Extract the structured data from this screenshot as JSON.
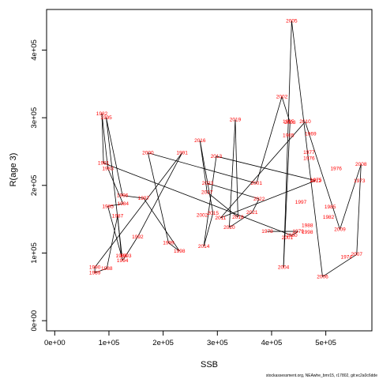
{
  "chart_data": {
    "type": "scatter",
    "connected": true,
    "xlabel": "SSB",
    "ylabel": "R(age 3)",
    "xlim": [
      -15000,
      585000
    ],
    "ylim": [
      -15000,
      460000
    ],
    "x_ticks": [
      0,
      100000,
      200000,
      300000,
      400000,
      500000
    ],
    "x_tick_labels": [
      "0e+00",
      "1e+05",
      "2e+05",
      "3e+05",
      "4e+05",
      "5e+05"
    ],
    "y_ticks": [
      0,
      100000,
      200000,
      300000,
      400000
    ],
    "y_tick_labels": [
      "0e+00",
      "1e+05",
      "2e+05",
      "3e+05",
      "4e+05"
    ],
    "line_color": "#000000",
    "label_color": "#ff0000",
    "points": [
      {
        "year": "1978",
        "x": 392000,
        "y": 132000
      },
      {
        "year": "1979",
        "x": 449000,
        "y": 132000
      },
      {
        "year": "1980",
        "x": 437000,
        "y": 126000
      },
      {
        "year": "1981",
        "x": 90000,
        "y": 233000
      },
      {
        "year": "1982",
        "x": 87000,
        "y": 306000
      },
      {
        "year": "1983",
        "x": 98000,
        "y": 225000
      },
      {
        "year": "1984",
        "x": 126000,
        "y": 173000
      },
      {
        "year": "1985",
        "x": 98000,
        "y": 169000
      },
      {
        "year": "1986",
        "x": 123000,
        "y": 96000
      },
      {
        "year": "1987",
        "x": 116000,
        "y": 155000
      },
      {
        "year": "1988",
        "x": 96000,
        "y": 77000
      },
      {
        "year": "1989",
        "x": 74000,
        "y": 71000
      },
      {
        "year": "1990",
        "x": 74000,
        "y": 79000
      },
      {
        "year": "1991",
        "x": 235000,
        "y": 248000
      },
      {
        "year": "1992",
        "x": 153000,
        "y": 124000
      },
      {
        "year": "1993",
        "x": 131000,
        "y": 96000
      },
      {
        "year": "1994",
        "x": 125000,
        "y": 89000
      },
      {
        "year": "1995",
        "x": 95000,
        "y": 300000
      },
      {
        "year": "1996",
        "x": 125000,
        "y": 185000
      },
      {
        "year": "1997",
        "x": 164000,
        "y": 181000
      },
      {
        "year": "1998",
        "x": 230000,
        "y": 103000
      },
      {
        "year": "1999",
        "x": 210000,
        "y": 115000
      },
      {
        "year": "2000",
        "x": 172000,
        "y": 248000
      },
      {
        "year": "2001",
        "x": 372000,
        "y": 203000
      },
      {
        "year": "2002",
        "x": 419000,
        "y": 331000
      },
      {
        "year": "2003",
        "x": 434000,
        "y": 293000
      },
      {
        "year": "2004",
        "x": 422000,
        "y": 79000
      },
      {
        "year": "2005",
        "x": 437000,
        "y": 443000
      },
      {
        "year": "2006",
        "x": 494000,
        "y": 65000
      },
      {
        "year": "2007",
        "x": 557000,
        "y": 98000
      },
      {
        "year": "2008",
        "x": 565000,
        "y": 231000
      },
      {
        "year": "2009",
        "x": 526000,
        "y": 135000
      },
      {
        "year": "2010",
        "x": 462000,
        "y": 294000
      },
      {
        "year": "2011",
        "x": 306000,
        "y": 152000
      },
      {
        "year": "2012",
        "x": 481000,
        "y": 207000
      },
      {
        "year": "2013",
        "x": 298000,
        "y": 243000
      },
      {
        "year": "2014",
        "x": 275000,
        "y": 110000
      },
      {
        "year": "2015",
        "x": 292000,
        "y": 159000
      },
      {
        "year": "2016",
        "x": 268000,
        "y": 266000
      },
      {
        "year": "2017",
        "x": 281000,
        "y": 190000
      },
      {
        "year": "2018",
        "x": 338000,
        "y": 153000
      },
      {
        "year": "2019",
        "x": 333000,
        "y": 297000
      },
      {
        "year": "2020",
        "x": 322000,
        "y": 138000
      },
      {
        "year": "2021",
        "x": 364000,
        "y": 160000
      },
      {
        "year": "2022",
        "x": 377000,
        "y": 180000
      },
      {
        "year": "2023",
        "x": 282000,
        "y": 203000
      }
    ],
    "extra_labels": [
      {
        "text": "1995",
        "x": 431000,
        "y": 294000
      },
      {
        "text": "1965",
        "x": 431000,
        "y": 274000
      },
      {
        "text": "1969",
        "x": 472000,
        "y": 276000
      },
      {
        "text": "1977",
        "x": 469000,
        "y": 249000
      },
      {
        "text": "1976",
        "x": 469000,
        "y": 240000
      },
      {
        "text": "1975",
        "x": 482000,
        "y": 208000
      },
      {
        "text": "1976",
        "x": 519000,
        "y": 225000
      },
      {
        "text": "1973",
        "x": 562000,
        "y": 207000
      },
      {
        "text": "1997",
        "x": 454000,
        "y": 175000
      },
      {
        "text": "1988",
        "x": 466000,
        "y": 141000
      },
      {
        "text": "1998",
        "x": 466000,
        "y": 131000
      },
      {
        "text": "1985",
        "x": 508000,
        "y": 168000
      },
      {
        "text": "1982",
        "x": 505000,
        "y": 153000
      },
      {
        "text": "1974",
        "x": 538000,
        "y": 94000
      },
      {
        "text": "2001",
        "x": 429000,
        "y": 123000
      },
      {
        "text": "2002",
        "x": 272000,
        "y": 156000
      }
    ],
    "footer_text": "stockassessment.org, NEAwhe_bmr15, r17802, git:ec2a0c6dde"
  }
}
